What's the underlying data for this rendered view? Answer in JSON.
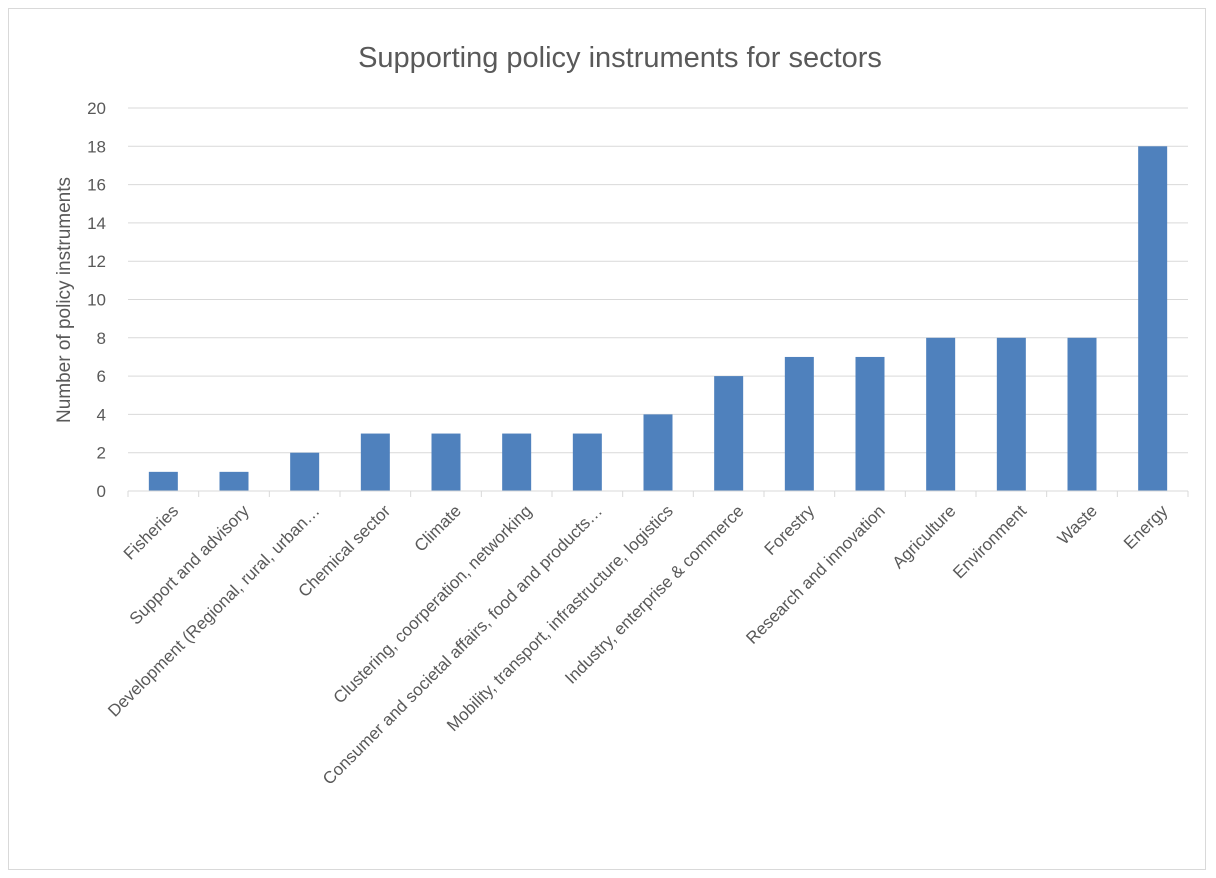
{
  "chart_data": {
    "type": "bar",
    "title": "Supporting policy instruments for sectors",
    "xlabel": "",
    "ylabel": "Number of policy instruments",
    "ylim": [
      0,
      20
    ],
    "ytick_step": 2,
    "grid": true,
    "legend": "none",
    "bar_color": "#4f81bd",
    "categories": [
      "Fisheries",
      "Support and advisory",
      "Development (Regional, rural, urban…",
      "Chemical sector",
      "Climate",
      "Clustering, coorperation, networking",
      "Consumer and societal affairs, food and products…",
      "Mobility, transport, infrastructure, logistics",
      "Industry, enterprise & commerce",
      "Forestry",
      "Research and innovation",
      "Agriculture",
      "Environment",
      "Waste",
      "Energy"
    ],
    "values": [
      1,
      1,
      2,
      3,
      3,
      3,
      3,
      4,
      6,
      7,
      7,
      8,
      8,
      8,
      18
    ]
  }
}
